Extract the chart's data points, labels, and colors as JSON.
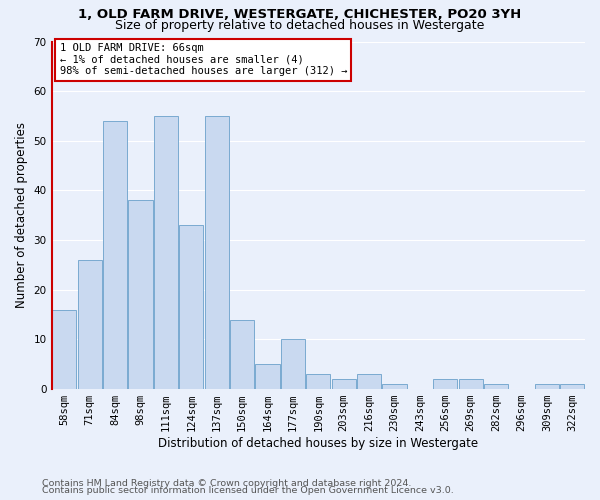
{
  "title_line1": "1, OLD FARM DRIVE, WESTERGATE, CHICHESTER, PO20 3YH",
  "title_line2": "Size of property relative to detached houses in Westergate",
  "xlabel": "Distribution of detached houses by size in Westergate",
  "ylabel": "Number of detached properties",
  "categories": [
    "58sqm",
    "71sqm",
    "84sqm",
    "98sqm",
    "111sqm",
    "124sqm",
    "137sqm",
    "150sqm",
    "164sqm",
    "177sqm",
    "190sqm",
    "203sqm",
    "216sqm",
    "230sqm",
    "243sqm",
    "256sqm",
    "269sqm",
    "282sqm",
    "296sqm",
    "309sqm",
    "322sqm"
  ],
  "values": [
    16,
    26,
    54,
    38,
    55,
    33,
    55,
    14,
    5,
    10,
    3,
    2,
    3,
    1,
    0,
    2,
    2,
    1,
    0,
    1,
    1
  ],
  "bar_color": "#c9d9f0",
  "bar_edge_color": "#7aaad0",
  "highlight_color": "#cc0000",
  "annotation_text": "1 OLD FARM DRIVE: 66sqm\n← 1% of detached houses are smaller (4)\n98% of semi-detached houses are larger (312) →",
  "annotation_box_color": "#ffffff",
  "annotation_box_edge": "#cc0000",
  "ylim": [
    0,
    70
  ],
  "yticks": [
    0,
    10,
    20,
    30,
    40,
    50,
    60,
    70
  ],
  "bg_color": "#eaf0fb",
  "plot_bg_color": "#eaf0fb",
  "footer_line1": "Contains HM Land Registry data © Crown copyright and database right 2024.",
  "footer_line2": "Contains public sector information licensed under the Open Government Licence v3.0.",
  "grid_color": "#ffffff",
  "title_fontsize": 9.5,
  "subtitle_fontsize": 9,
  "axis_label_fontsize": 8.5,
  "tick_fontsize": 7.5,
  "annotation_fontsize": 7.5,
  "footer_fontsize": 6.8
}
